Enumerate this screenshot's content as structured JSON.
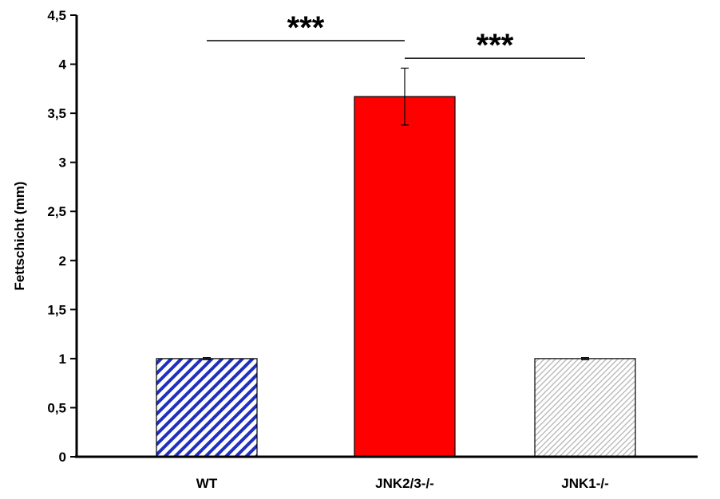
{
  "chart_data": {
    "type": "bar",
    "title": "",
    "xlabel": "",
    "ylabel": "Fettschicht (mm)",
    "ylim": [
      0,
      4.5
    ],
    "yticks": [
      0,
      0.5,
      1,
      1.5,
      2,
      2.5,
      3,
      3.5,
      4,
      4.5
    ],
    "ytick_labels": [
      "0",
      "0,5",
      "1",
      "1,5",
      "2",
      "2,5",
      "3",
      "3,5",
      "4",
      "4,5"
    ],
    "categories": [
      "WT",
      "JNK2/3-/-",
      "JNK1-/-"
    ],
    "values": [
      1.0,
      3.67,
      1.0
    ],
    "errors": [
      0.01,
      0.29,
      0.01
    ],
    "colors": [
      "#1f2fbf",
      "#ff0000",
      "#bdbdbd"
    ],
    "fills": [
      "diagonal-hatch-blue",
      "solid-red",
      "diagonal-hatch-grey"
    ],
    "grid": false,
    "significance": [
      {
        "from": 0,
        "to": 1,
        "label": "***",
        "y": 4.24
      },
      {
        "from": 1,
        "to": 2,
        "label": "***",
        "y": 4.06
      }
    ]
  }
}
